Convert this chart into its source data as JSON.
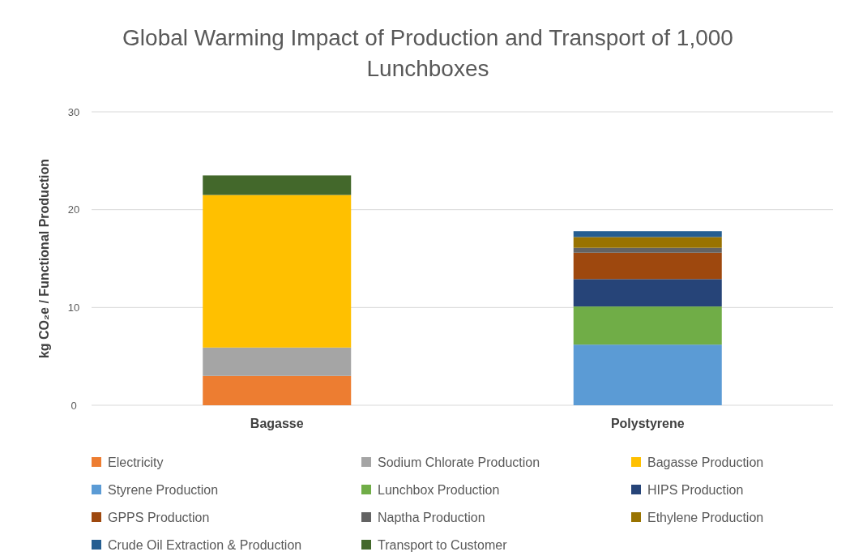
{
  "chart_data": {
    "type": "bar",
    "title": "Global Warming Impact of Production and Transport of 1,000 Lunchboxes",
    "ylabel": "kg CO₂e / Functional Production",
    "categories": [
      "Bagasse",
      "Polystyrene"
    ],
    "stacked": true,
    "ylim": [
      0,
      30
    ],
    "yticks": [
      0,
      10,
      20,
      30
    ],
    "grid": "y",
    "legend": "bottom",
    "series": [
      {
        "name": "Electricity",
        "color": "#ed7d31",
        "values": [
          3.0,
          null
        ]
      },
      {
        "name": "Sodium Chlorate Production",
        "color": "#a5a5a5",
        "values": [
          2.9,
          null
        ]
      },
      {
        "name": "Bagasse Production",
        "color": "#ffc000",
        "values": [
          15.6,
          null
        ]
      },
      {
        "name": "Styrene Production",
        "color": "#5b9bd5",
        "values": [
          null,
          6.2
        ]
      },
      {
        "name": "Lunchbox Production",
        "color": "#70ad47",
        "values": [
          null,
          3.9
        ]
      },
      {
        "name": "HIPS Production",
        "color": "#264478",
        "values": [
          null,
          2.8
        ]
      },
      {
        "name": "GPPS Production",
        "color": "#9e480e",
        "values": [
          null,
          2.7
        ]
      },
      {
        "name": "Naptha Production",
        "color": "#636363",
        "values": [
          null,
          0.5
        ]
      },
      {
        "name": "Ethylene Production",
        "color": "#997300",
        "values": [
          null,
          1.1
        ]
      },
      {
        "name": "Crude Oil Extraction & Production",
        "color": "#255e91",
        "values": [
          null,
          0.6
        ]
      },
      {
        "name": "Transport to Customer",
        "color": "#43682b",
        "values": [
          2.0,
          null
        ]
      }
    ]
  }
}
